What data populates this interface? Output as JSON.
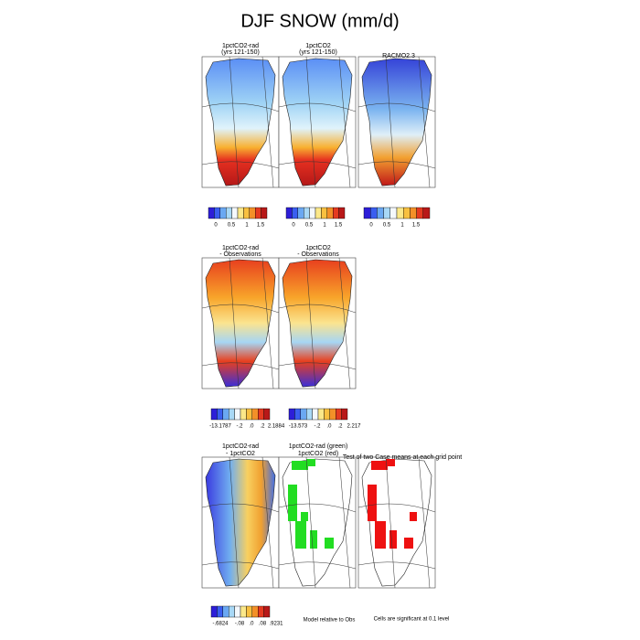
{
  "title": "DJF SNOW (mm/d)",
  "rows": [
    {
      "panels": [
        {
          "title": [
            "1pctCO2-rad",
            "(yrs 121-150)"
          ]
        },
        {
          "title": [
            "1pctCO2",
            "(yrs 121-150)"
          ]
        },
        {
          "title": [
            "RACMO2.3"
          ]
        }
      ],
      "colorbars": [
        {
          "labels": [
            "0",
            "0.5",
            "1",
            "1.5"
          ]
        },
        {
          "labels": [
            "0",
            "0.5",
            "1",
            "1.5"
          ]
        },
        {
          "labels": [
            "0",
            "0.5",
            "1",
            "1.5"
          ]
        }
      ]
    },
    {
      "panels": [
        {
          "title": [
            "1pctCO2-rad",
            "- Observations"
          ]
        },
        {
          "title": [
            "1pctCO2",
            "- Observations"
          ]
        }
      ],
      "colorbars": [
        {
          "labels": [
            "-13.1787",
            "-.2",
            ".0",
            ".2",
            "2.1884"
          ]
        },
        {
          "labels": [
            "-13.573",
            "-.2",
            ".0",
            ".2",
            "2.217"
          ]
        }
      ]
    },
    {
      "panels": [
        {
          "title": [
            "1pctCO2-rad",
            "- 1pctCO2"
          ]
        },
        {
          "title": [
            "1pctCO2-rad (green)",
            "1pctCO2 (red)"
          ]
        },
        {
          "title": [
            "Test of two Case means at each grid point"
          ]
        }
      ],
      "colorbars": [
        {
          "labels": [
            "-.6824",
            "-.08",
            ".0",
            ".08",
            ".9231"
          ]
        }
      ]
    }
  ],
  "notes": [
    "Model relative to Obs",
    "Cells are significant at 0.1 level"
  ]
}
